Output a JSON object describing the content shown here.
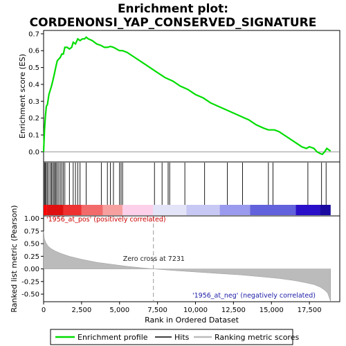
{
  "chart_data": {
    "type": "line",
    "title_line1": "Enrichment plot:",
    "title_line2": "CORDENONSI_YAP_CONSERVED_SIGNATURE",
    "xlabel": "Rank in Ordered Dataset",
    "ylabel_top": "Enrichment score (ES)",
    "ylabel_bottom": "Ranked list metric (Pearson)",
    "xlim": [
      0,
      19500
    ],
    "x_ticks": [
      0,
      2500,
      5000,
      7500,
      10000,
      12500,
      15000,
      17500
    ],
    "x_tick_labels": [
      "0",
      "2,500",
      "5,000",
      "7,500",
      "10,000",
      "12,500",
      "15,000",
      "17,500"
    ],
    "es_ylim": [
      -0.06,
      0.72
    ],
    "es_ticks": [
      0.0,
      0.1,
      0.2,
      0.3,
      0.4,
      0.5,
      0.6,
      0.7
    ],
    "es_tick_labels": [
      "0.0",
      "0.1",
      "0.2",
      "0.3",
      "0.4",
      "0.5",
      "0.6",
      "0.7"
    ],
    "metric_ylim": [
      -0.65,
      1.05
    ],
    "metric_ticks": [
      1.0,
      0.75,
      0.5,
      0.25,
      0.0,
      -0.25,
      -0.5
    ],
    "metric_tick_labels": [
      "1.00",
      "0.75",
      "0.50",
      "0.25",
      "0.00",
      "-0.25",
      "-0.50"
    ],
    "series": [
      {
        "name": "Enrichment profile",
        "color": "#00dd00",
        "x": [
          0,
          60,
          120,
          180,
          250,
          350,
          450,
          520,
          600,
          680,
          750,
          820,
          900,
          1000,
          1100,
          1200,
          1300,
          1400,
          1550,
          1700,
          1850,
          1950,
          2100,
          2250,
          2400,
          2550,
          2700,
          2800,
          2950,
          3200,
          3500,
          3800,
          4000,
          4200,
          4400,
          4600,
          4800,
          5000,
          5200,
          5500,
          6000,
          6500,
          7000,
          7500,
          8000,
          8500,
          9000,
          9500,
          10000,
          10500,
          11000,
          11500,
          12000,
          12500,
          13000,
          13500,
          14000,
          14500,
          14800,
          15000,
          15200,
          15500,
          16000,
          16500,
          17000,
          17300,
          17500,
          17800,
          18000,
          18200,
          18350,
          18500,
          18650,
          18800,
          18900
        ],
        "values": [
          0.0,
          0.13,
          0.21,
          0.27,
          0.28,
          0.34,
          0.37,
          0.39,
          0.42,
          0.45,
          0.48,
          0.51,
          0.54,
          0.55,
          0.56,
          0.58,
          0.58,
          0.62,
          0.62,
          0.61,
          0.62,
          0.65,
          0.64,
          0.67,
          0.66,
          0.67,
          0.67,
          0.68,
          0.67,
          0.66,
          0.64,
          0.63,
          0.62,
          0.62,
          0.625,
          0.62,
          0.61,
          0.6,
          0.6,
          0.59,
          0.56,
          0.53,
          0.5,
          0.47,
          0.44,
          0.42,
          0.39,
          0.37,
          0.34,
          0.32,
          0.29,
          0.27,
          0.25,
          0.23,
          0.21,
          0.19,
          0.16,
          0.14,
          0.13,
          0.13,
          0.13,
          0.12,
          0.09,
          0.06,
          0.03,
          0.02,
          0.03,
          0.02,
          0.0,
          -0.01,
          -0.015,
          0.0,
          0.02,
          0.01,
          0.005
        ]
      }
    ],
    "hits": [
      60,
      120,
      180,
      250,
      350,
      450,
      520,
      600,
      680,
      750,
      820,
      900,
      1000,
      1100,
      1200,
      1300,
      1400,
      1700,
      1950,
      2100,
      2250,
      2400,
      2800,
      3800,
      4200,
      4400,
      4600,
      5000,
      5100,
      5200,
      7300,
      7800,
      8200,
      8300,
      9300,
      10600,
      12100,
      13100,
      14800,
      15100,
      17400,
      18300,
      18600
    ],
    "metric_curve": {
      "x": [
        0,
        50,
        150,
        300,
        500,
        800,
        1200,
        1700,
        2500,
        3500,
        4500,
        5500,
        6500,
        7231,
        8500,
        10000,
        11500,
        13000,
        14500,
        15500,
        16500,
        17200,
        17800,
        18200,
        18500,
        18700,
        18800,
        18900
      ],
      "values": [
        0.75,
        0.6,
        0.52,
        0.45,
        0.4,
        0.35,
        0.3,
        0.25,
        0.19,
        0.13,
        0.09,
        0.05,
        0.02,
        0.0,
        -0.03,
        -0.06,
        -0.09,
        -0.12,
        -0.16,
        -0.19,
        -0.23,
        -0.27,
        -0.31,
        -0.36,
        -0.42,
        -0.48,
        -0.56,
        -0.65
      ]
    },
    "heat_band": [
      {
        "x0": 0,
        "x1": 200,
        "color": "#ff0000"
      },
      {
        "x0": 200,
        "x1": 1300,
        "color": "#e01010"
      },
      {
        "x0": 1300,
        "x1": 2500,
        "color": "#ee3030"
      },
      {
        "x0": 2500,
        "x1": 3900,
        "color": "#f26a6a"
      },
      {
        "x0": 3900,
        "x1": 5200,
        "color": "#f7a0a0"
      },
      {
        "x0": 5200,
        "x1": 7200,
        "color": "#fbd0e8"
      },
      {
        "x0": 7200,
        "x1": 9400,
        "color": "#e4e4f8"
      },
      {
        "x0": 9400,
        "x1": 11600,
        "color": "#c8c8f4"
      },
      {
        "x0": 11600,
        "x1": 13600,
        "color": "#9a9aee"
      },
      {
        "x0": 13600,
        "x1": 16600,
        "color": "#6262dc"
      },
      {
        "x0": 16600,
        "x1": 18200,
        "color": "#2a10c8"
      },
      {
        "x0": 18200,
        "x1": 18900,
        "color": "#1a0aa0"
      }
    ],
    "zero_cross_x": 7231,
    "annotations": {
      "pos": "'1956_at_pos' (positively correlated)",
      "neg": "'1956_at_neg' (negatively correlated)",
      "zero_cross": "Zero cross at 7231"
    },
    "legend": {
      "items": [
        {
          "label": "Enrichment profile",
          "color": "#00dd00"
        },
        {
          "label": "Hits",
          "color": "#000000"
        },
        {
          "label": "Ranking metric scores",
          "color": "#bbbbbb"
        }
      ]
    }
  }
}
